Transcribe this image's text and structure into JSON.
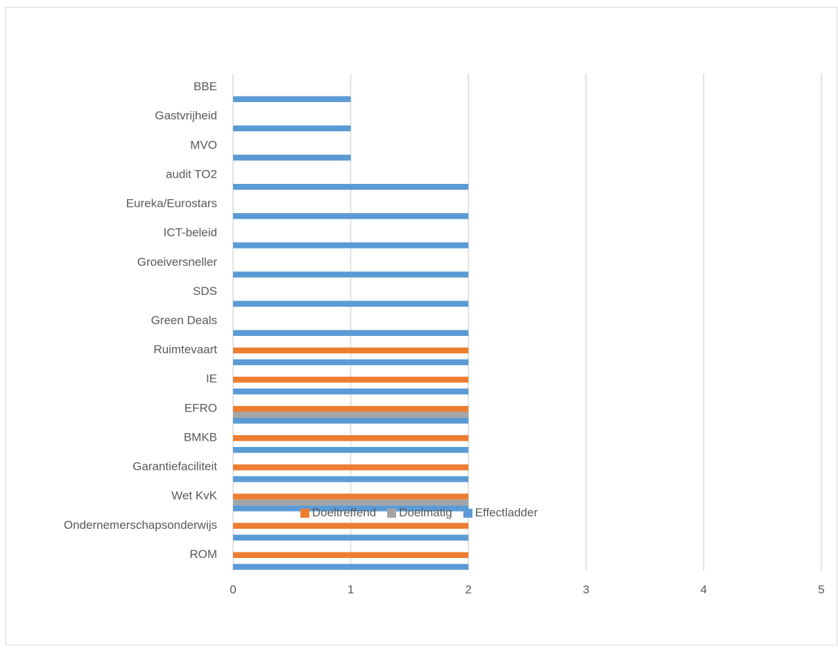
{
  "colors": {
    "Doeltreffend": "#ED7D31",
    "Doelmatig": "#A5A5A5",
    "Effectladder": "#5B9BD5",
    "grid": "#d9d9d9",
    "text": "#595959"
  },
  "legend": {
    "items": [
      {
        "label": "Doeltreffend"
      },
      {
        "label": "Doelmatig"
      },
      {
        "label": "Effectladder"
      }
    ]
  },
  "chart_data": {
    "type": "bar",
    "orientation": "horizontal",
    "title": "",
    "xlabel": "",
    "ylabel": "",
    "xlim": [
      0,
      5
    ],
    "x_ticks": [
      "0",
      "1",
      "2",
      "3",
      "4",
      "5"
    ],
    "grid": true,
    "legend_position": "bottom",
    "categories": [
      "BBE",
      "Gastvrijheid",
      "MVO",
      "audit TO2",
      "Eureka/Eurostars",
      "ICT-beleid",
      "Groeiversneller",
      "SDS",
      "Green Deals",
      "Ruimtevaart",
      "IE",
      "EFRO",
      "BMKB",
      "Garantiefaciliteit",
      "Wet KvK",
      "Ondernemerschapsonderwijs",
      "ROM"
    ],
    "series": [
      {
        "name": "Doeltreffend",
        "values": [
          0,
          0,
          0,
          0,
          0,
          0,
          0,
          0,
          0,
          2,
          2,
          2,
          2,
          2,
          2,
          2,
          2
        ]
      },
      {
        "name": "Doelmatig",
        "values": [
          0,
          0,
          0,
          0,
          0,
          0,
          0,
          0,
          0,
          0,
          0,
          2,
          0,
          0,
          2,
          0,
          0
        ]
      },
      {
        "name": "Effectladder",
        "values": [
          1,
          1,
          1,
          2,
          2,
          2,
          2,
          2,
          2,
          2,
          2,
          2,
          2,
          2,
          2,
          2,
          2
        ]
      }
    ]
  }
}
